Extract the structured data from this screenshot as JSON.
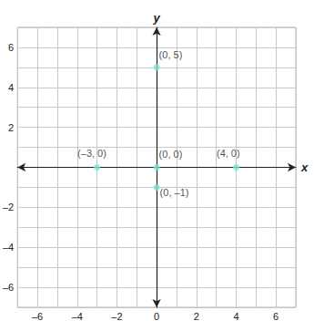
{
  "chart_data": {
    "type": "scatter",
    "x_label": "x",
    "y_label": "y",
    "x": [
      0,
      -3,
      0,
      4,
      0
    ],
    "values": [
      5,
      0,
      0,
      0,
      -1
    ],
    "value_labels": [
      "(0, 5)",
      "(–3, 0)",
      "(0, 0)",
      "(4, 0)",
      "(0, –1)"
    ],
    "data_labels": true,
    "color": "#7de3d4",
    "xlim": [
      -7,
      7
    ],
    "ylim": [
      -7,
      7
    ],
    "xticks": [
      {
        "value": -6,
        "label": "–6"
      },
      {
        "value": -4,
        "label": "–4"
      },
      {
        "value": -2,
        "label": "–2"
      },
      0,
      2,
      4,
      6
    ],
    "yticks": [
      {
        "value": -6,
        "label": "–6"
      },
      {
        "value": -4,
        "label": "–4"
      },
      {
        "value": -2,
        "label": "–2"
      },
      2,
      4,
      6
    ],
    "grid": true
  }
}
